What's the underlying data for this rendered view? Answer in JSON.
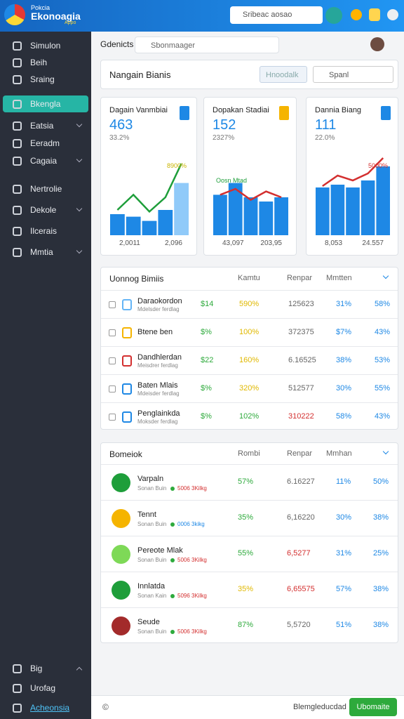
{
  "topbar": {
    "brand_small": "Pokcia",
    "brand": "Ekonoagia",
    "brand_tag": "Appo",
    "search": "Sribeac aosao"
  },
  "sidebar": {
    "items": [
      {
        "label": "Simulon"
      },
      {
        "label": "Beih"
      },
      {
        "label": "Sraing"
      },
      {
        "label": "Bkengla",
        "active": true
      },
      {
        "label": "Eatsia",
        "expandable": true
      },
      {
        "label": "Eeradm"
      },
      {
        "label": "Cagaia",
        "expandable": true
      },
      {
        "label": "Nertrolie"
      },
      {
        "label": "Dekole",
        "expandable": true
      },
      {
        "label": "Ilcerais"
      },
      {
        "label": "Mmtia",
        "expandable": true
      }
    ],
    "bottom": [
      {
        "label": "Big"
      },
      {
        "label": "Urofag"
      },
      {
        "label": "Acheonsia",
        "link": true
      }
    ]
  },
  "header": {
    "title": "Gdenicts",
    "search": "Sbonmaager"
  },
  "panel": {
    "title": "Nangain Bianis",
    "button": "Hnoodalk",
    "select": "Spanl"
  },
  "cards": [
    {
      "title": "Dagain Vanmbiai",
      "value": 463,
      "change": "33.2%",
      "badge_color": "#1e88e5",
      "chart": {
        "bars": [
          25,
          22,
          17,
          30,
          62
        ],
        "line": [
          30,
          48,
          28,
          45,
          85
        ],
        "ylim": [
          0,
          100
        ],
        "bar_color": "#1e88e5",
        "line_color": "#1e9e3a",
        "annotation": "8900%",
        "annotation_color": "#c9b400",
        "x_labels": [
          "2,0011",
          "2,096"
        ]
      }
    },
    {
      "title": "Dopakan Stadiai",
      "value": 152,
      "change": "2327%",
      "badge_color": "#f5b400",
      "chart": {
        "bars": [
          48,
          62,
          45,
          40,
          45
        ],
        "line": [
          48,
          55,
          42,
          52,
          45
        ],
        "ylim": [
          0,
          100
        ],
        "bar_color": "#1e88e5",
        "line_color": "#d32f2f",
        "annotation": "Oosn Mtad",
        "annotation_color": "#1e9e3a",
        "x_labels": [
          "43,097",
          "203,95"
        ]
      }
    },
    {
      "title": "Dannia Biang",
      "value": 111,
      "change": "22.0%",
      "badge_color": "#1e88e5",
      "chart": {
        "bars": [
          68,
          72,
          68,
          78,
          98
        ],
        "line": [
          70,
          85,
          78,
          88,
          110
        ],
        "ylim": [
          0,
          120
        ],
        "bar_color": "#1e88e5",
        "line_color": "#d32f2f",
        "annotation": "5000%",
        "annotation_color": "#d32f2f",
        "x_labels": [
          "8,053",
          "24.557"
        ]
      }
    }
  ],
  "table1": {
    "title": "Uonnog Bimiis",
    "columns": [
      "Kamtu",
      "Renpar",
      "Mmtten"
    ],
    "rows": [
      {
        "name": "Daraokordon",
        "sub": "Mdelsder ferdlag",
        "icon_color": "#64b5f6",
        "values": [
          "$14",
          "590%",
          "125623",
          "31%",
          "58%"
        ],
        "colors": [
          "#2eaa3c",
          "#e0b800",
          "#666",
          "#1e88e5",
          "#1e88e5"
        ]
      },
      {
        "name": "Btene ben",
        "icon_color": "#f5b400",
        "values": [
          "$%",
          "100%",
          "372375",
          "$7%",
          "43%"
        ],
        "colors": [
          "#2eaa3c",
          "#e0b800",
          "#666",
          "#1e88e5",
          "#1e88e5"
        ]
      },
      {
        "name": "Dandhlerdan",
        "sub": "Meisdrer ferdlag",
        "icon_color": "#d32f2f",
        "values": [
          "$22",
          "160%",
          "6.16525",
          "38%",
          "53%"
        ],
        "colors": [
          "#2eaa3c",
          "#e0b800",
          "#666",
          "#1e88e5",
          "#1e88e5"
        ]
      },
      {
        "name": "Baten Mlais",
        "sub": "Mdeisder ferdlag",
        "icon_color": "#1e88e5",
        "values": [
          "$%",
          "320%",
          "512577",
          "30%",
          "55%"
        ],
        "colors": [
          "#2eaa3c",
          "#e0b800",
          "#666",
          "#1e88e5",
          "#1e88e5"
        ]
      },
      {
        "name": "Penglainkda",
        "sub": "Moksder ferdlag",
        "icon_color": "#1e88e5",
        "values": [
          "$%",
          "102%",
          "310222",
          "58%",
          "43%"
        ],
        "colors": [
          "#2eaa3c",
          "#2eaa3c",
          "#d32f2f",
          "#1e88e5",
          "#1e88e5"
        ]
      }
    ]
  },
  "table2": {
    "title": "Bomeiok",
    "columns": [
      "Rombi",
      "Renpar",
      "Mmhan"
    ],
    "rows": [
      {
        "name": "Varpaln",
        "sub": "Sonan Buin",
        "tag": "5006 3Kilkg",
        "tag_color": "#d32f2f",
        "icon_color": "#1e9e3a",
        "values": [
          "57%",
          "6.16227",
          "11%",
          "50%"
        ],
        "colors": [
          "#2eaa3c",
          "#666",
          "#1e88e5",
          "#1e88e5"
        ]
      },
      {
        "name": "Tennt",
        "sub": "Sonan Buin",
        "tag": "0006 3kikg",
        "tag_color": "#1e88e5",
        "icon_color": "#f5b400",
        "values": [
          "35%",
          "6,16220",
          "30%",
          "38%"
        ],
        "colors": [
          "#2eaa3c",
          "#666",
          "#1e88e5",
          "#1e88e5"
        ]
      },
      {
        "name": "Pereote Mlak",
        "sub": "Sonan Buin",
        "tag": "5006 3Kilkg",
        "tag_color": "#d32f2f",
        "icon_color": "#7ed957",
        "values": [
          "55%",
          "6,5277",
          "31%",
          "25%"
        ],
        "colors": [
          "#2eaa3c",
          "#d32f2f",
          "#1e88e5",
          "#1e88e5"
        ]
      },
      {
        "name": "Innlatda",
        "sub": "Sonan Kain",
        "tag": "5096 3Kilkg",
        "tag_color": "#d32f2f",
        "icon_color": "#1e9e3a",
        "values": [
          "35%",
          "6,65575",
          "57%",
          "38%"
        ],
        "colors": [
          "#e0b800",
          "#d32f2f",
          "#1e88e5",
          "#1e88e5"
        ]
      },
      {
        "name": "Seude",
        "sub": "Sonan Buin",
        "tag": "5006 3Kilkg",
        "tag_color": "#d32f2f",
        "icon_color": "#a32b2b",
        "values": [
          "87%",
          "5,5720",
          "51%",
          "38%"
        ],
        "colors": [
          "#2eaa3c",
          "#666",
          "#1e88e5",
          "#1e88e5"
        ]
      }
    ]
  },
  "footer": {
    "icon": "©",
    "label": "Blemgleducdad",
    "button": "Ubomaite"
  }
}
